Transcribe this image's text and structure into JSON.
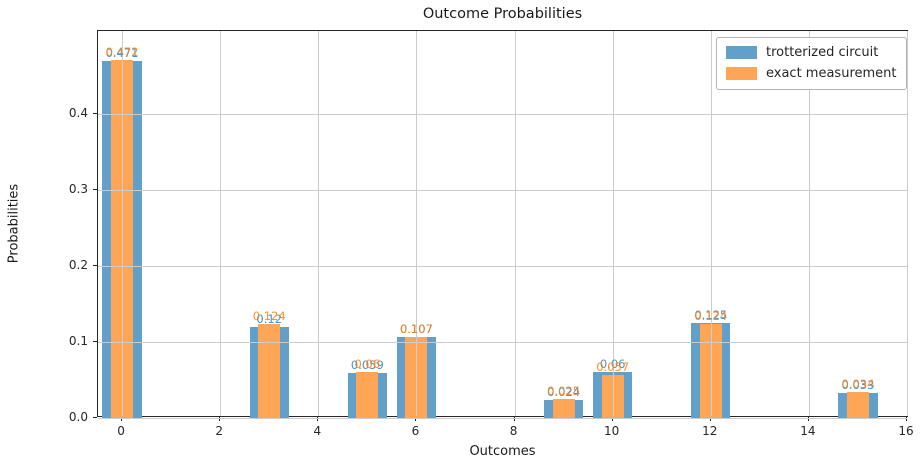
{
  "chart_data": {
    "type": "bar",
    "title": "Outcome Probabilities",
    "xlabel": "Outcomes",
    "ylabel": "Probabilities",
    "categories": [
      0,
      3,
      5,
      6,
      9,
      10,
      12,
      15
    ],
    "series": [
      {
        "name": "trotterized circuit",
        "color": "#62a0ca",
        "label_color": "rgba(31,119,180,0.80)",
        "bar_width_units": 0.8,
        "values": [
          0.471,
          0.12,
          0.059,
          0.107,
          0.024,
          0.06,
          0.125,
          0.033
        ],
        "labels": [
          "0.471",
          "0.12",
          "0.059",
          "0.107",
          "0.024",
          "0.06",
          "0.125",
          "0.033"
        ]
      },
      {
        "name": "exact measurement",
        "color": "#ffa556",
        "label_color": "rgba(255,127,14,0.88)",
        "bar_width_units": 0.45,
        "values": [
          0.472,
          0.124,
          0.06,
          0.107,
          0.025,
          0.057,
          0.124,
          0.034
        ],
        "labels": [
          "0.472",
          "0.124",
          "0.06",
          "0.107",
          "0.025",
          "0.057",
          "0.124",
          "0.034"
        ]
      }
    ],
    "xticks": [
      0,
      2,
      4,
      6,
      8,
      10,
      12,
      14,
      16
    ],
    "ytick_labels": [
      "0.0",
      "0.1",
      "0.2",
      "0.3",
      "0.4"
    ],
    "ytick_values": [
      0.0,
      0.1,
      0.2,
      0.3,
      0.4
    ],
    "xlim": [
      -0.49,
      16.04
    ],
    "ylim": [
      0,
      0.51
    ],
    "grid": true,
    "grid_above_bars": true,
    "legend_position": "upper right"
  }
}
